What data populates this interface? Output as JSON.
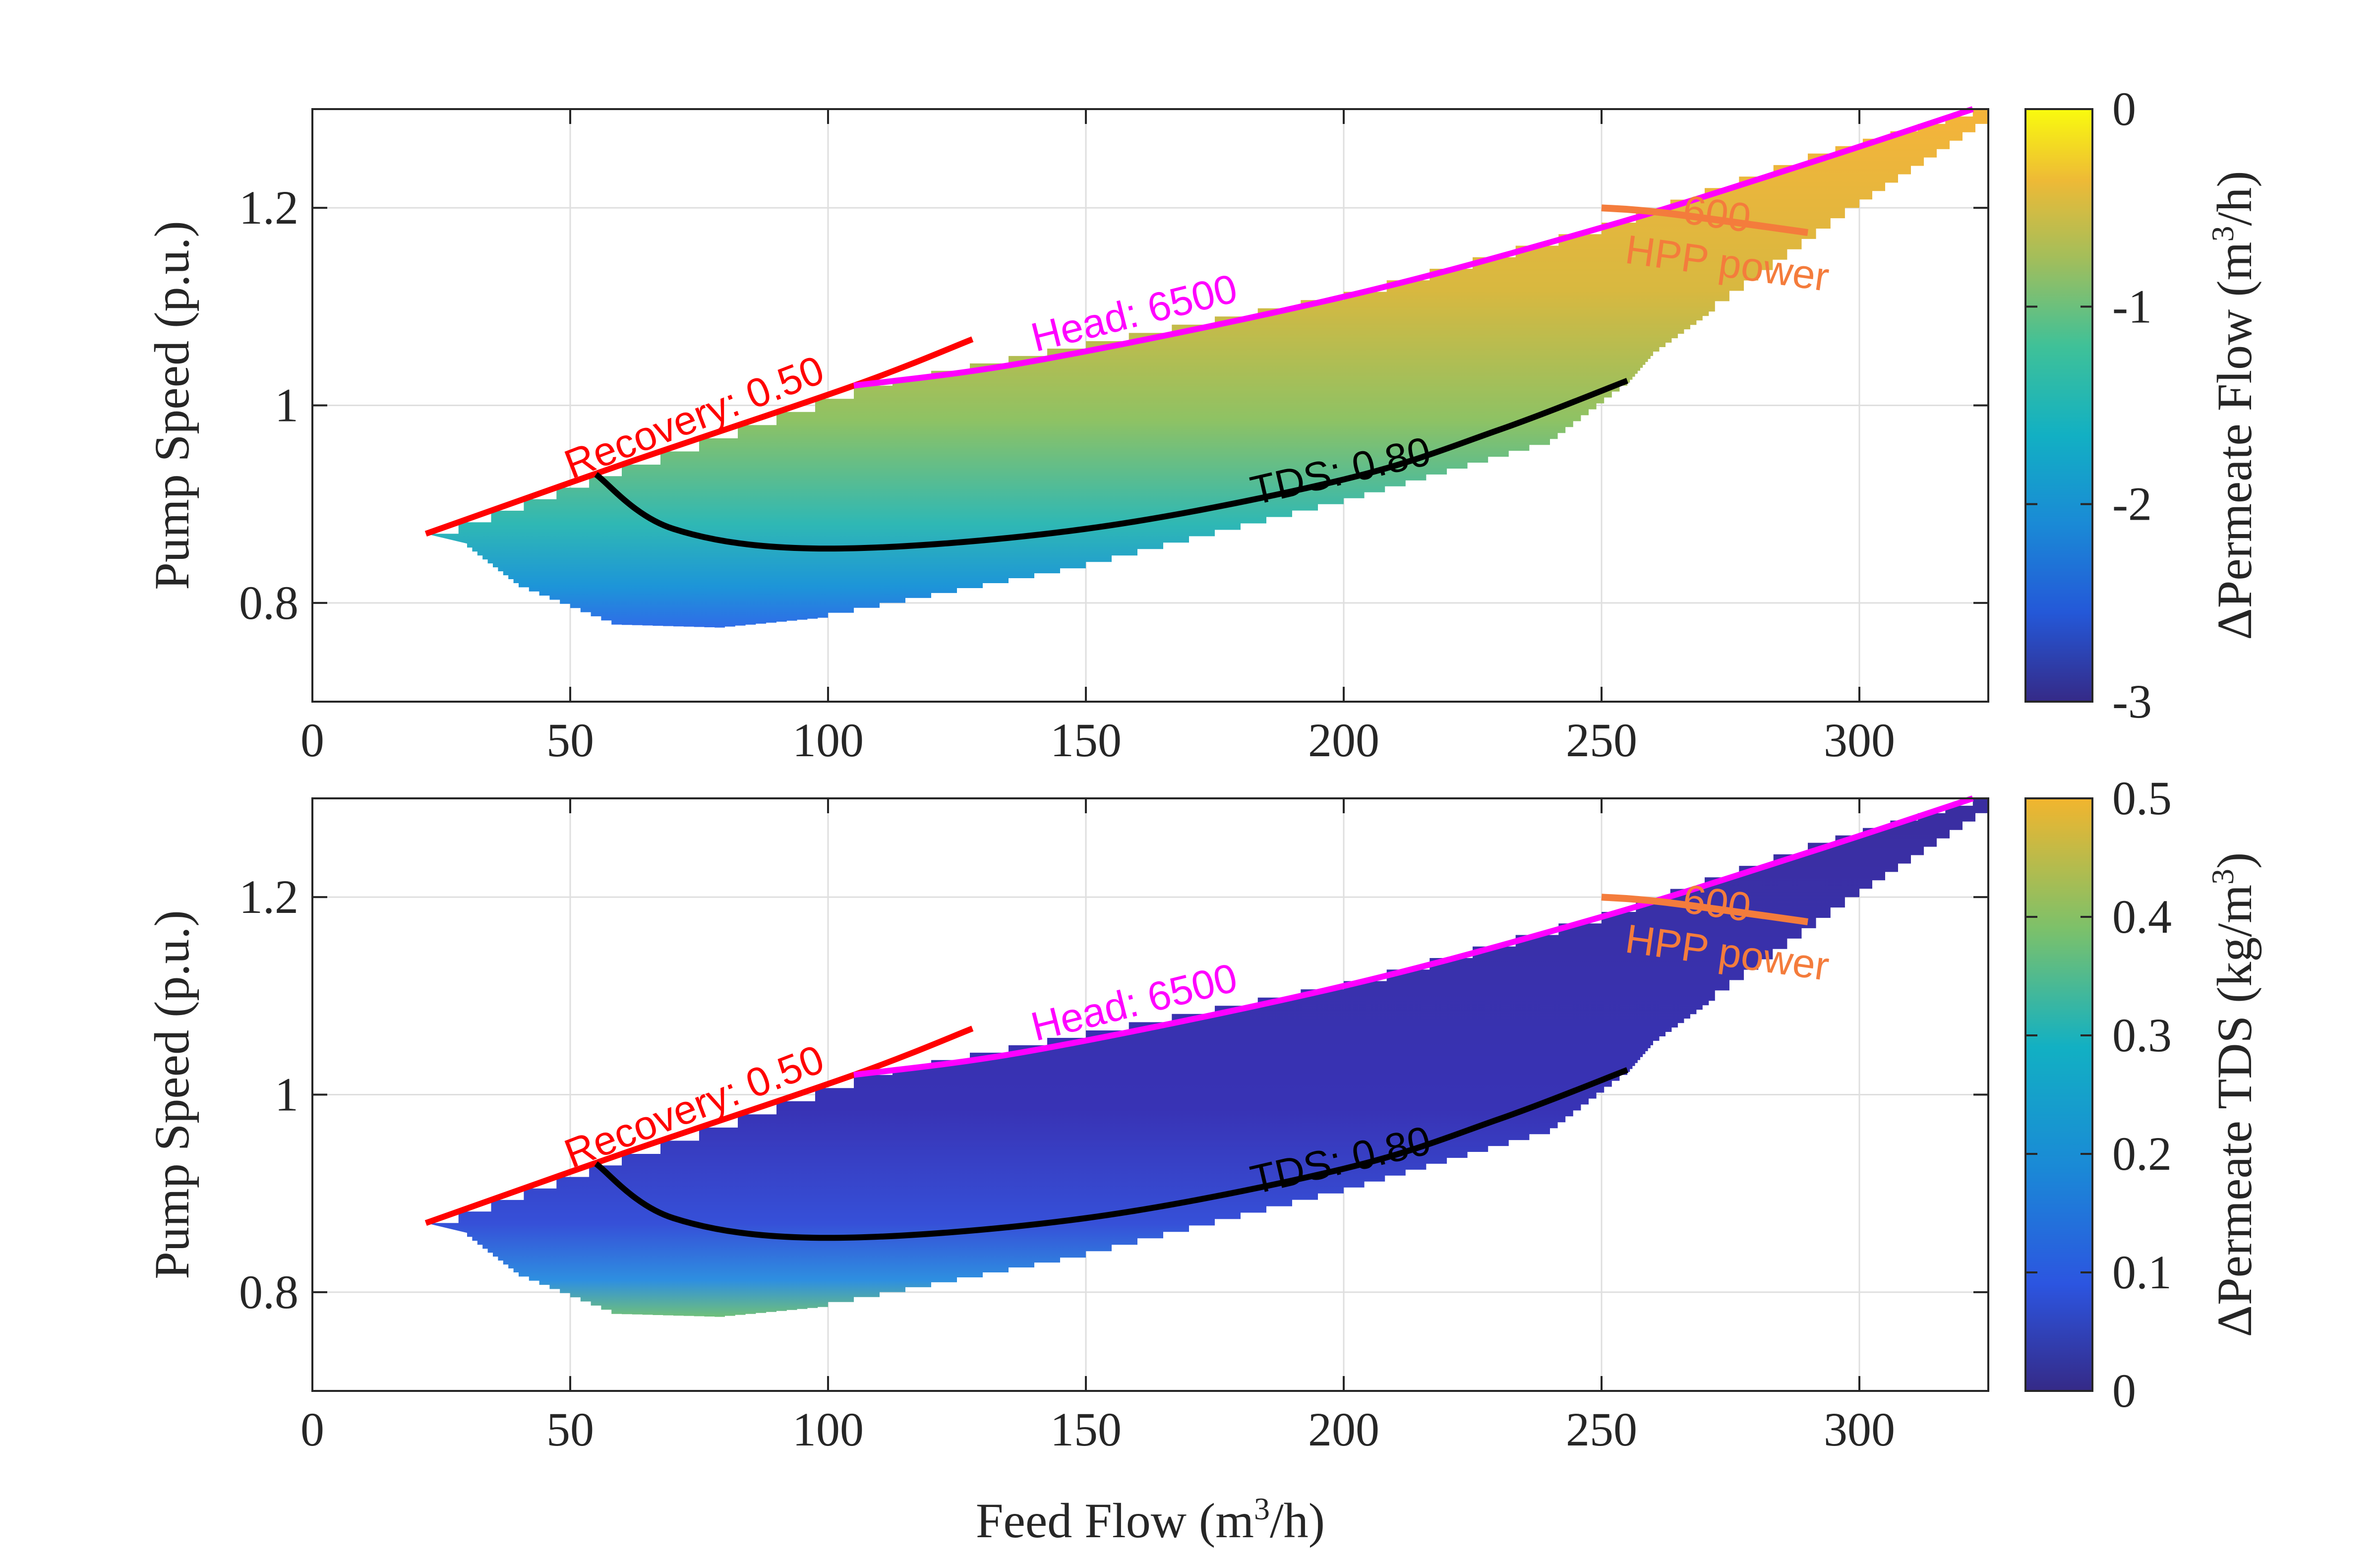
{
  "chart_data": [
    {
      "type": "heatmap",
      "title": "",
      "xlabel": "",
      "ylabel": "Pump Speed (p.u.)",
      "xlim": [
        0,
        325
      ],
      "ylim": [
        0.7,
        1.3
      ],
      "xticks": [
        0,
        50,
        100,
        150,
        200,
        250,
        300
      ],
      "xtick_labels": [
        "0",
        "50",
        "100",
        "150",
        "200",
        "250",
        "300"
      ],
      "yticks": [
        0.8,
        1.0,
        1.2
      ],
      "ytick_labels": [
        "0.8",
        "1",
        "1.2"
      ],
      "grid": true,
      "colorbar": {
        "label": "ΔPermeate Flow (m³/h)",
        "label_parts": [
          "ΔPermeate Flow (m",
          "3",
          "/h)"
        ],
        "range": [
          -3,
          0
        ],
        "ticks": [
          0,
          -1,
          -2,
          -3
        ],
        "tick_labels": [
          "0",
          "-1",
          "-2",
          "-3"
        ],
        "colormap": "parula"
      },
      "region": {
        "upper_boundary": [
          [
            22,
            0.87
          ],
          [
            60,
            0.94
          ],
          [
            105,
            1.02
          ],
          [
            150,
            1.065
          ],
          [
            200,
            1.115
          ],
          [
            250,
            1.185
          ],
          [
            290,
            1.255
          ],
          [
            322,
            1.3
          ],
          [
            325,
            1.3
          ]
        ],
        "lower_boundary": [
          [
            30,
            0.86
          ],
          [
            40,
            0.82
          ],
          [
            60,
            0.778
          ],
          [
            80,
            0.775
          ],
          [
            100,
            0.785
          ],
          [
            150,
            0.835
          ],
          [
            200,
            0.9
          ],
          [
            240,
            0.96
          ],
          [
            255,
            1.02
          ],
          [
            260,
            1.05
          ],
          [
            272,
            1.095
          ],
          [
            300,
            1.2
          ],
          [
            325,
            1.285
          ]
        ],
        "value_note": "Permeate flow change, near 0 along the upper region, about -1.3 in the middle and about -2.7 along the lower boundary"
      },
      "contours": [
        {
          "name": "Recovery",
          "label": "Recovery: 0.50",
          "color": "#ff0000",
          "points": [
            [
              22,
              0.87
            ],
            [
              60,
              0.94
            ],
            [
              105,
              1.02
            ],
            [
              128,
              1.067
            ]
          ]
        },
        {
          "name": "Head",
          "label": "Head: 6500",
          "color": "#ff00ff",
          "points": [
            [
              105,
              1.02
            ],
            [
              140,
              1.045
            ],
            [
              200,
              1.11
            ],
            [
              250,
              1.18
            ],
            [
              290,
              1.245
            ],
            [
              322,
              1.3
            ]
          ]
        },
        {
          "name": "TDS",
          "label": "TDS: 0.80",
          "color": "#000000",
          "points": [
            [
              55,
              0.93
            ],
            [
              70,
              0.875
            ],
            [
              100,
              0.855
            ],
            [
              150,
              0.875
            ],
            [
              200,
              0.925
            ],
            [
              230,
              0.975
            ],
            [
              255,
              1.025
            ]
          ]
        },
        {
          "name": "HPP power",
          "label_top": "600",
          "label_bottom": "HPP power",
          "color": "#f47c3c",
          "points": [
            [
              250,
              1.2
            ],
            [
              262,
              1.195
            ],
            [
              290,
              1.175
            ]
          ]
        }
      ]
    },
    {
      "type": "heatmap",
      "title": "",
      "xlabel": "Feed Flow (m³/h)",
      "xlabel_parts": [
        "Feed Flow (m",
        "3",
        "/h)"
      ],
      "ylabel": "Pump Speed (p.u.)",
      "xlim": [
        0,
        325
      ],
      "ylim": [
        0.7,
        1.3
      ],
      "xticks": [
        0,
        50,
        100,
        150,
        200,
        250,
        300
      ],
      "xtick_labels": [
        "0",
        "50",
        "100",
        "150",
        "200",
        "250",
        "300"
      ],
      "yticks": [
        0.8,
        1.0,
        1.2
      ],
      "ytick_labels": [
        "0.8",
        "1",
        "1.2"
      ],
      "grid": true,
      "colorbar": {
        "label": "ΔPermeate TDS (kg/m³)",
        "label_parts": [
          "ΔPermeate TDS (kg/m",
          "3",
          ")"
        ],
        "range": [
          0,
          0.5
        ],
        "ticks": [
          0.5,
          0.4,
          0.3,
          0.2,
          0.1,
          0
        ],
        "tick_labels": [
          "0.5",
          "0.4",
          "0.3",
          "0.2",
          "0.1",
          "0"
        ],
        "colormap": "parula-truncated"
      },
      "region": {
        "upper_boundary": [
          [
            22,
            0.87
          ],
          [
            60,
            0.94
          ],
          [
            105,
            1.02
          ],
          [
            150,
            1.065
          ],
          [
            200,
            1.115
          ],
          [
            250,
            1.185
          ],
          [
            290,
            1.255
          ],
          [
            322,
            1.3
          ],
          [
            325,
            1.3
          ]
        ],
        "lower_boundary": [
          [
            30,
            0.86
          ],
          [
            40,
            0.82
          ],
          [
            60,
            0.778
          ],
          [
            80,
            0.775
          ],
          [
            100,
            0.785
          ],
          [
            150,
            0.835
          ],
          [
            200,
            0.9
          ],
          [
            240,
            0.96
          ],
          [
            255,
            1.02
          ],
          [
            260,
            1.05
          ],
          [
            272,
            1.095
          ],
          [
            300,
            1.2
          ],
          [
            325,
            1.285
          ]
        ],
        "value_note": "Permeate TDS change, near 0.03 over most of the region, rising toward 0.4 along the lower boundary"
      },
      "contours": [
        {
          "name": "Recovery",
          "label": "Recovery: 0.50",
          "color": "#ff0000",
          "points": [
            [
              22,
              0.87
            ],
            [
              60,
              0.94
            ],
            [
              105,
              1.02
            ],
            [
              128,
              1.067
            ]
          ]
        },
        {
          "name": "Head",
          "label": "Head: 6500",
          "color": "#ff00ff",
          "points": [
            [
              105,
              1.02
            ],
            [
              140,
              1.045
            ],
            [
              200,
              1.11
            ],
            [
              250,
              1.18
            ],
            [
              290,
              1.245
            ],
            [
              322,
              1.3
            ]
          ]
        },
        {
          "name": "TDS",
          "label": "TDS: 0.80",
          "color": "#000000",
          "points": [
            [
              55,
              0.93
            ],
            [
              70,
              0.875
            ],
            [
              100,
              0.855
            ],
            [
              150,
              0.875
            ],
            [
              200,
              0.925
            ],
            [
              230,
              0.975
            ],
            [
              255,
              1.025
            ]
          ]
        },
        {
          "name": "HPP power",
          "label_top": "600",
          "label_bottom": "HPP power",
          "color": "#f47c3c",
          "points": [
            [
              250,
              1.2
            ],
            [
              262,
              1.195
            ],
            [
              290,
              1.175
            ]
          ]
        }
      ]
    }
  ],
  "colors": {
    "recovery": "#ff0000",
    "head": "#ff00ff",
    "tds": "#000000",
    "hpp_power": "#f47c3c",
    "grid": "#dddddd",
    "axes": "#262626"
  }
}
